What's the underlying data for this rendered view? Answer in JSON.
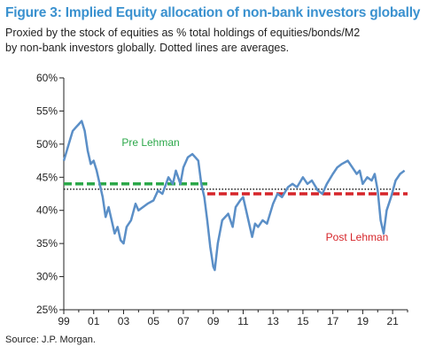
{
  "header": {
    "title": "Figure 3: Implied Equity allocation of non-bank investors globally",
    "subtitle_line1": "Proxied by the stock of equities as % total holdings of equities/bonds/M2",
    "subtitle_line2": "by non-bank investors globally. Dotted lines are averages."
  },
  "footer": {
    "source": "Source: J.P. Morgan."
  },
  "chart_data": {
    "type": "line",
    "title": "Figure 3: Implied Equity allocation of non-bank investors globally",
    "xlabel": "",
    "ylabel": "",
    "xlim": [
      1999,
      2022
    ],
    "ylim": [
      25,
      60
    ],
    "x_tick_labels": [
      "99",
      "01",
      "03",
      "05",
      "07",
      "09",
      "11",
      "13",
      "15",
      "17",
      "19",
      "21"
    ],
    "x_tick_years": [
      1999,
      2001,
      2003,
      2005,
      2007,
      2009,
      2011,
      2013,
      2015,
      2017,
      2019,
      2021
    ],
    "y_ticks": [
      25,
      30,
      35,
      40,
      45,
      50,
      55,
      60
    ],
    "y_tick_labels": [
      "25%",
      "30%",
      "35%",
      "40%",
      "45%",
      "50%",
      "55%",
      "60%"
    ],
    "grid": false,
    "series": [
      {
        "color": "#5b8fc7",
        "x": [
          1999.0,
          1999.2,
          1999.4,
          1999.6,
          1999.8,
          2000.0,
          2000.2,
          2000.4,
          2000.6,
          2000.8,
          2001.0,
          2001.2,
          2001.4,
          2001.6,
          2001.8,
          2002.0,
          2002.2,
          2002.4,
          2002.6,
          2002.8,
          2003.0,
          2003.2,
          2003.5,
          2003.8,
          2004.0,
          2004.3,
          2004.6,
          2005.0,
          2005.3,
          2005.6,
          2006.0,
          2006.3,
          2006.5,
          2006.8,
          2007.0,
          2007.3,
          2007.6,
          2007.8,
          2008.0,
          2008.2,
          2008.4,
          2008.6,
          2008.8,
          2009.0,
          2009.1,
          2009.3,
          2009.6,
          2010.0,
          2010.3,
          2010.5,
          2010.8,
          2011.0,
          2011.3,
          2011.6,
          2011.8,
          2012.0,
          2012.3,
          2012.6,
          2013.0,
          2013.3,
          2013.6,
          2014.0,
          2014.3,
          2014.6,
          2015.0,
          2015.3,
          2015.6,
          2016.0,
          2016.3,
          2016.6,
          2017.0,
          2017.3,
          2017.6,
          2018.0,
          2018.3,
          2018.6,
          2018.8,
          2019.0,
          2019.3,
          2019.6,
          2019.8,
          2020.0,
          2020.2,
          2020.4,
          2020.6,
          2020.9,
          2021.2,
          2021.5,
          2021.8
        ],
        "values": [
          47.5,
          49.0,
          50.5,
          52.0,
          52.5,
          53.0,
          53.5,
          52.0,
          49.0,
          47.0,
          47.5,
          46.0,
          44.0,
          42.0,
          39.0,
          40.5,
          38.5,
          36.5,
          37.5,
          35.5,
          35.0,
          37.5,
          38.5,
          41.0,
          40.0,
          40.5,
          41.0,
          41.5,
          43.0,
          42.5,
          45.0,
          44.0,
          46.0,
          44.0,
          46.5,
          48.0,
          48.5,
          48.0,
          47.5,
          44.0,
          42.0,
          38.5,
          34.5,
          31.5,
          31.0,
          35.0,
          38.5,
          39.5,
          37.5,
          40.5,
          41.5,
          42.0,
          39.0,
          36.0,
          38.0,
          37.5,
          38.5,
          38.0,
          41.0,
          42.5,
          42.0,
          43.5,
          44.0,
          43.5,
          45.0,
          44.0,
          44.5,
          43.0,
          42.5,
          44.0,
          45.5,
          46.5,
          47.0,
          47.5,
          46.5,
          45.5,
          46.0,
          44.0,
          45.0,
          44.5,
          45.5,
          43.0,
          38.5,
          36.5,
          40.0,
          42.0,
          44.5,
          45.5,
          46.0
        ]
      }
    ],
    "averages": [
      {
        "label": "Pre Lehman",
        "value": 44.0,
        "x_range": [
          1999.0,
          2008.6
        ],
        "color": "#2ca84a"
      },
      {
        "label": "Post Lehman",
        "value": 42.5,
        "x_range": [
          2008.6,
          2022.0
        ],
        "color": "#d6252a"
      },
      {
        "label": "",
        "value": 43.2,
        "x_range": [
          1999.0,
          2021.5
        ],
        "color": "#222222"
      }
    ],
    "annotations": [
      {
        "text": "Pre Lehman",
        "color": "#2ca84a"
      },
      {
        "text": "Post Lehman",
        "color": "#d6252a"
      }
    ]
  }
}
